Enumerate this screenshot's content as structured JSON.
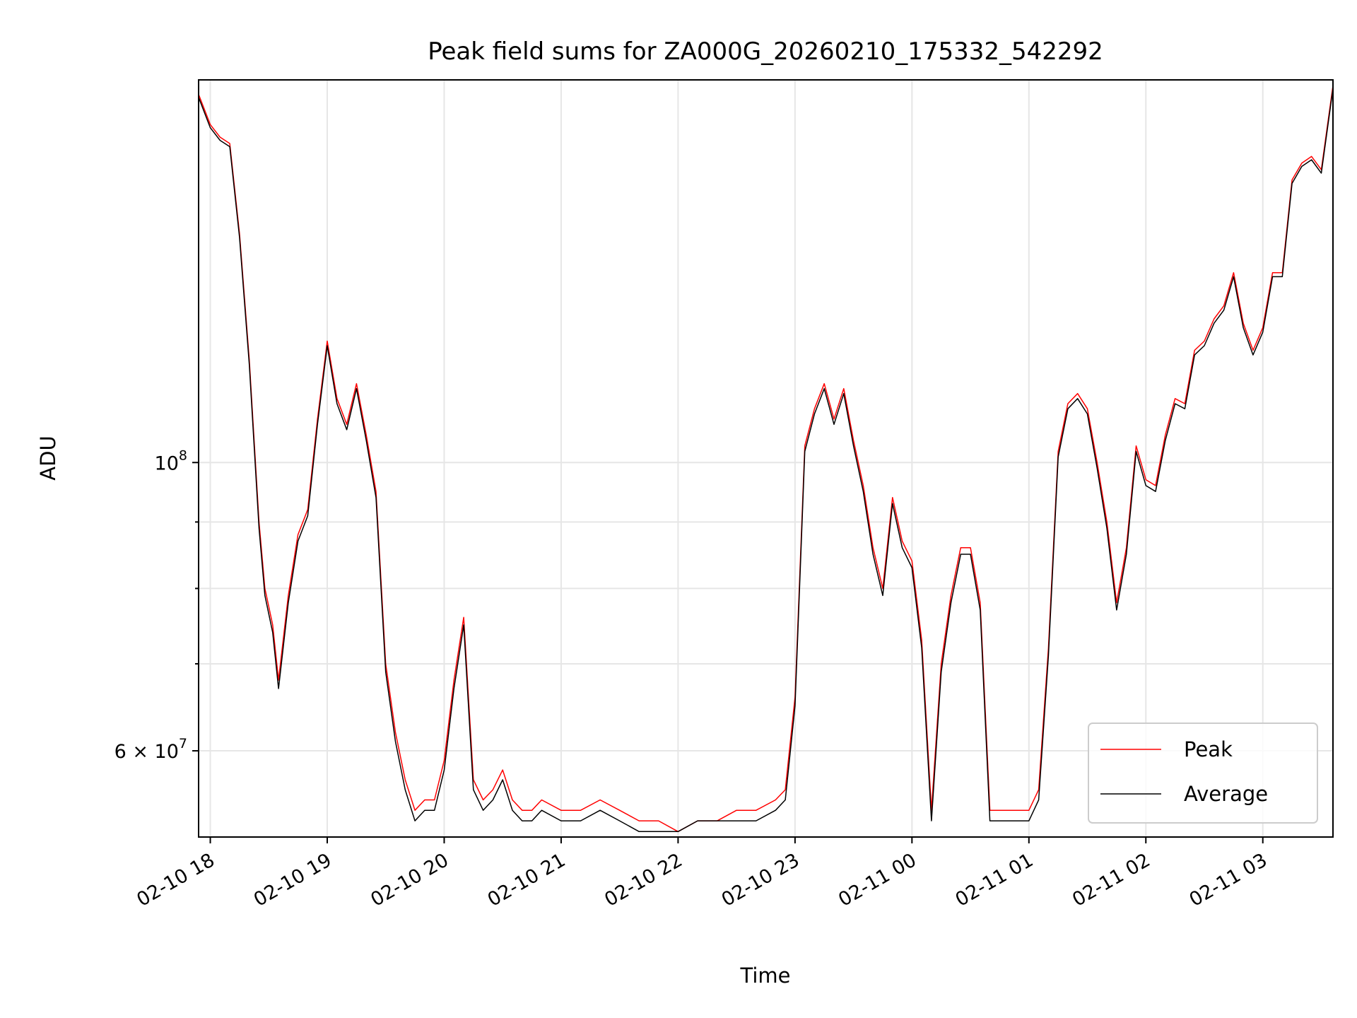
{
  "chart_data": {
    "type": "line",
    "title": "Peak field sums for ZA000G_20260210_175332_542292",
    "xlabel": "Time",
    "ylabel": "ADU",
    "x_range": [
      "2026-02-10 17:54",
      "2026-02-11 03:36"
    ],
    "y_scale": "log",
    "ylim": [
      51500000,
      197000000
    ],
    "grid": true,
    "legend_position": "lower right",
    "x_tick_labels": [
      "02-10 18",
      "02-10 19",
      "02-10 20",
      "02-10 21",
      "02-10 22",
      "02-10 23",
      "02-11 00",
      "02-11 01",
      "02-11 02",
      "02-11 03"
    ],
    "y_tick_labels": [
      {
        "label": "10",
        "exponent": "8",
        "value": 100000000
      },
      {
        "label": "6 × 10",
        "exponent": "7",
        "value": 60000000
      }
    ],
    "y_minor_ticks": [
      70000000,
      80000000,
      90000000
    ],
    "x": [
      "17:54",
      "18:00",
      "18:05",
      "18:10",
      "18:15",
      "18:20",
      "18:25",
      "18:28",
      "18:32",
      "18:35",
      "18:40",
      "18:45",
      "18:50",
      "18:55",
      "19:00",
      "19:05",
      "19:10",
      "19:15",
      "19:20",
      "19:25",
      "19:30",
      "19:35",
      "19:40",
      "19:45",
      "19:50",
      "19:55",
      "20:00",
      "20:05",
      "20:10",
      "20:15",
      "20:20",
      "20:25",
      "20:30",
      "20:35",
      "20:40",
      "20:45",
      "20:50",
      "21:00",
      "21:10",
      "21:20",
      "21:30",
      "21:40",
      "21:50",
      "22:00",
      "22:10",
      "22:20",
      "22:30",
      "22:40",
      "22:50",
      "22:55",
      "23:00",
      "23:05",
      "23:10",
      "23:15",
      "23:20",
      "23:25",
      "23:30",
      "23:35",
      "23:40",
      "23:45",
      "23:50",
      "23:55",
      "00:00",
      "00:05",
      "00:10",
      "00:15",
      "00:20",
      "00:25",
      "00:30",
      "00:35",
      "00:40",
      "00:45",
      "00:50",
      "00:55",
      "01:00",
      "01:05",
      "01:10",
      "01:15",
      "01:20",
      "01:25",
      "01:30",
      "01:35",
      "01:40",
      "01:45",
      "01:50",
      "01:55",
      "02:00",
      "02:05",
      "02:10",
      "02:15",
      "02:20",
      "02:25",
      "02:30",
      "02:35",
      "02:40",
      "02:45",
      "02:50",
      "02:55",
      "03:00",
      "03:05",
      "03:10",
      "03:15",
      "03:20",
      "03:25",
      "03:30",
      "03:36"
    ],
    "series": [
      {
        "name": "Peak",
        "color": "#ff0000",
        "values": [
          192,
          182,
          178,
          176,
          150,
          120,
          90,
          80,
          75,
          68,
          79,
          88,
          92,
          108,
          124,
          112,
          107,
          115,
          105,
          95,
          70,
          62,
          57,
          54,
          55,
          55,
          59,
          68,
          76,
          57,
          55,
          56,
          58,
          55,
          54,
          54,
          55,
          54,
          54,
          55,
          54,
          53,
          53,
          52,
          53,
          53,
          54,
          54,
          55,
          56,
          66,
          103,
          110,
          115,
          108,
          114,
          104,
          96,
          86,
          80,
          94,
          87,
          84,
          73,
          54,
          70,
          79,
          86,
          86,
          78,
          54,
          54,
          54,
          54,
          54,
          56,
          72,
          102,
          111,
          113,
          110,
          100,
          90,
          78,
          86,
          103,
          97,
          96,
          105,
          112,
          111,
          122,
          124,
          129,
          132,
          140,
          128,
          122,
          127,
          140,
          140,
          165,
          170,
          172,
          168,
          195
        ]
      },
      {
        "name": "Average",
        "color": "#000000",
        "values": [
          191,
          181,
          177,
          175,
          149,
          119,
          89,
          79,
          74,
          67,
          78,
          87,
          91,
          107,
          123,
          111,
          106,
          114,
          104,
          94,
          69,
          61,
          56,
          53,
          54,
          54,
          58,
          67,
          75,
          56,
          54,
          55,
          57,
          54,
          53,
          53,
          54,
          53,
          53,
          54,
          53,
          52,
          52,
          52,
          53,
          53,
          53,
          53,
          54,
          55,
          65,
          102,
          109,
          114,
          107,
          113,
          103,
          95,
          85,
          79,
          93,
          86,
          83,
          72,
          53,
          69,
          78,
          85,
          85,
          77,
          53,
          53,
          53,
          53,
          53,
          55,
          71,
          101,
          110,
          112,
          109,
          99,
          89,
          77,
          85,
          102,
          96,
          95,
          104,
          111,
          110,
          121,
          123,
          128,
          131,
          139,
          127,
          121,
          126,
          139,
          139,
          164,
          169,
          171,
          167,
          194
        ]
      }
    ]
  }
}
